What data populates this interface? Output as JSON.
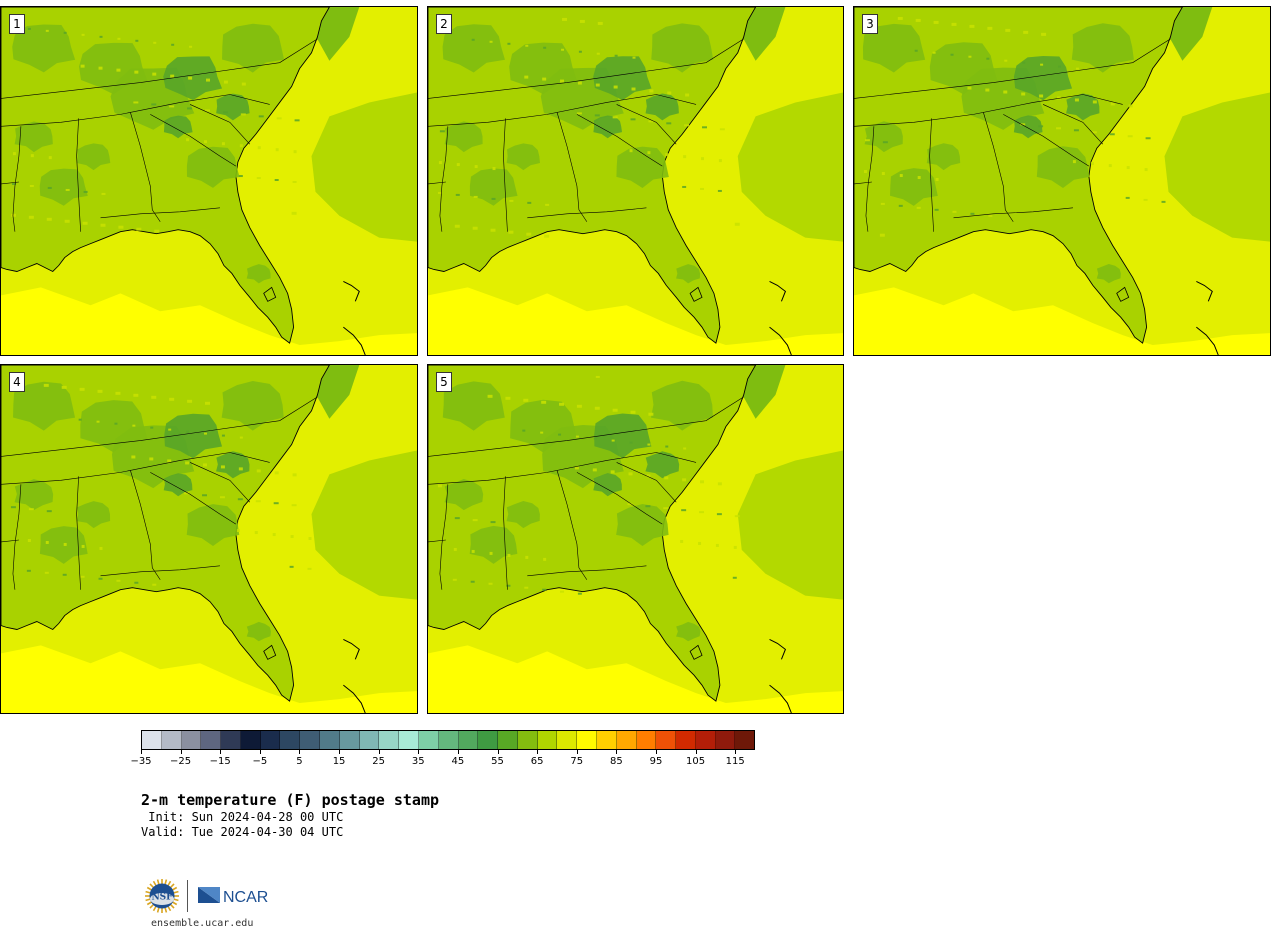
{
  "panels": [
    {
      "label": "1"
    },
    {
      "label": "2"
    },
    {
      "label": "3"
    },
    {
      "label": "4"
    },
    {
      "label": "5"
    }
  ],
  "colorbar": {
    "colors": [
      "#dde2ea",
      "#b4bac6",
      "#8b90a0",
      "#5e6680",
      "#2f3a56",
      "#0e1a36",
      "#1a2c4c",
      "#2d4762",
      "#3f5d74",
      "#517b89",
      "#68999f",
      "#80b8b4",
      "#98d6c6",
      "#a8ead6",
      "#7ed0a6",
      "#64b87e",
      "#52a85e",
      "#3f9b42",
      "#58a825",
      "#84bd0f",
      "#b1d600",
      "#dde900",
      "#fffb00",
      "#ffd000",
      "#ffa800",
      "#ff7e00",
      "#ef5106",
      "#d12a00",
      "#b31e08",
      "#8f1a0c",
      "#6e1808"
    ],
    "tick_labels": [
      "−35",
      "−25",
      "−15",
      "−5",
      "5",
      "15",
      "25",
      "35",
      "45",
      "55",
      "65",
      "75",
      "85",
      "95",
      "105",
      "115"
    ],
    "min": -35,
    "max": 120,
    "step": 5
  },
  "title": "2-m temperature (F) postage stamp",
  "init": " Init: Sun 2024-04-28 00 UTC",
  "valid": "Valid: Tue 2024-04-30 04 UTC",
  "logos": {
    "left": "NSF",
    "right": "NCAR"
  },
  "site": "ensemble.ucar.edu",
  "colors": {
    "ocean_warm": "#ffff00",
    "ocean_mid": "#e3ef00",
    "ocean_cool": "#b3d900",
    "land_base": "#a9d200",
    "land_cool": "#7fbd10",
    "land_cold": "#58a528"
  }
}
